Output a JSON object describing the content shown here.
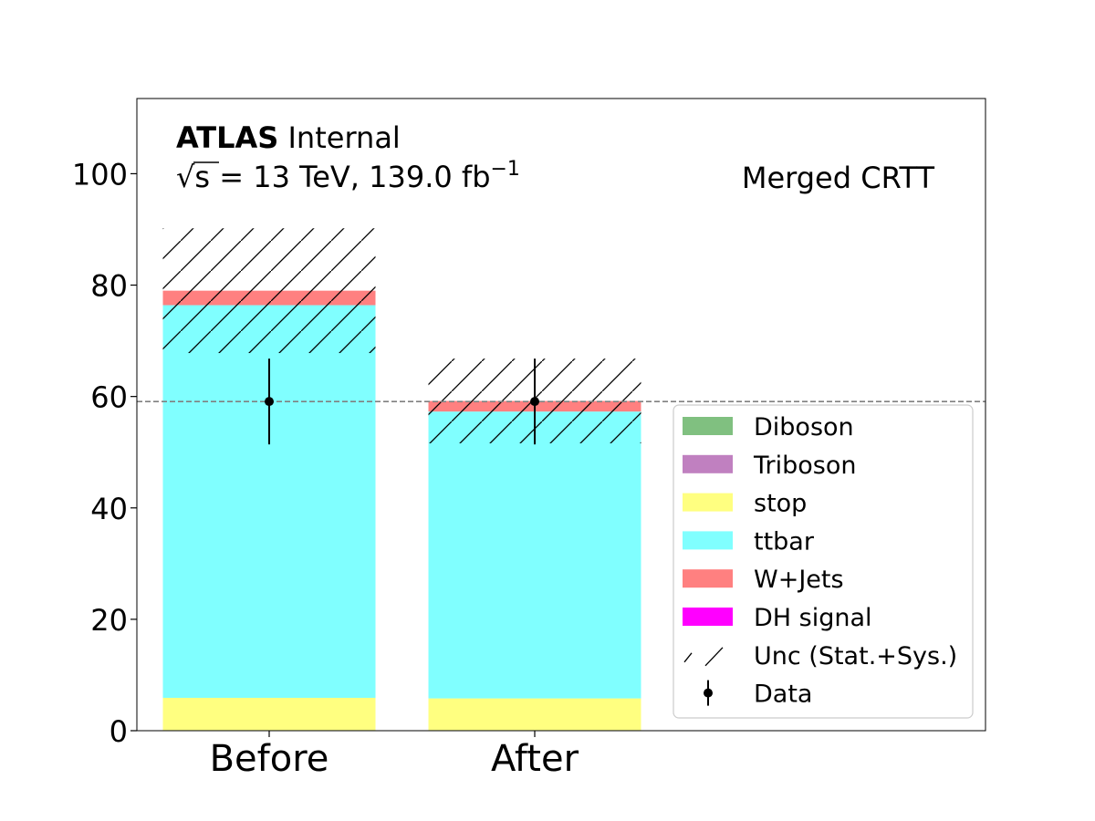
{
  "chart_data": {
    "type": "bar",
    "stacked": true,
    "categories": [
      "Before",
      "After"
    ],
    "series": [
      {
        "name": "Diboson",
        "color": "#80c080",
        "values": [
          0.1,
          0.1
        ]
      },
      {
        "name": "Triboson",
        "color": "#c080c0",
        "values": [
          0.0,
          0.0
        ]
      },
      {
        "name": "stop",
        "color": "#ffff80",
        "values": [
          5.8,
          5.7
        ]
      },
      {
        "name": "ttbar",
        "color": "#80ffff",
        "values": [
          70.5,
          51.5
        ]
      },
      {
        "name": "W+Jets",
        "color": "#ff8080",
        "values": [
          2.6,
          1.9
        ]
      },
      {
        "name": "DH signal",
        "color": "#ff00ff",
        "values": [
          0.0,
          0.0
        ]
      }
    ],
    "uncertainty": {
      "label": "Unc (Stat.+Sys.)",
      "low": [
        67.8,
        51.6
      ],
      "high": [
        90.2,
        66.8
      ]
    },
    "data": {
      "label": "Data",
      "values": [
        59.1,
        59.1
      ],
      "err_low": [
        51.4,
        51.4
      ],
      "err_high": [
        66.8,
        66.8
      ]
    },
    "reference_line": 59.1,
    "ylim": [
      0,
      113.5
    ],
    "yticks": [
      0,
      20,
      40,
      60,
      80,
      100
    ],
    "annotations": {
      "experiment_bold": "ATLAS",
      "experiment_status": "Internal",
      "energy_lumi_prefix": "√s = 13 TeV, 139.0 fb",
      "lumi_superscript": "−1",
      "region": "Merged CRTT"
    },
    "legend_position": "lower-right",
    "grid": false
  }
}
